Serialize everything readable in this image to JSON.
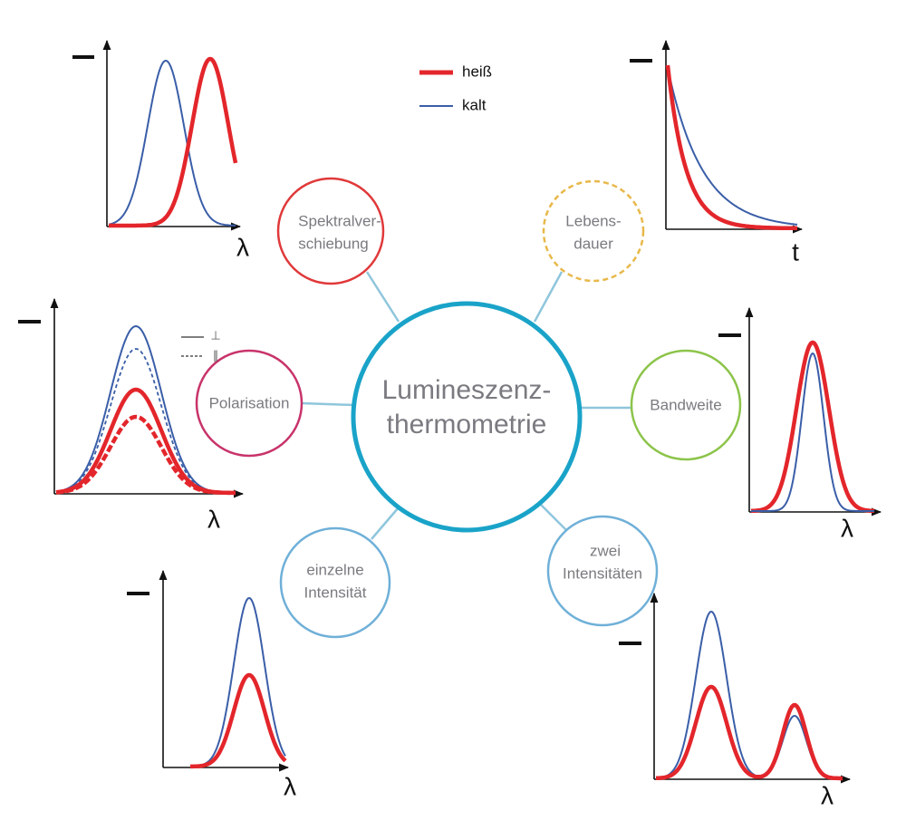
{
  "legend": {
    "hot": "heiß",
    "cold": "kalt"
  },
  "center": {
    "lines": [
      "Lumineszenz-",
      "thermometrie"
    ]
  },
  "nodes": [
    {
      "lines": [
        "Spektralver-",
        "schiebung"
      ]
    },
    {
      "lines": [
        "Lebens-",
        "dauer"
      ]
    },
    {
      "lines": [
        "Polarisation"
      ]
    },
    {
      "lines": [
        "Bandweite"
      ]
    },
    {
      "lines": [
        "einzelne",
        "Intensität"
      ]
    },
    {
      "lines": [
        "zwei",
        "Intensitäten"
      ]
    }
  ],
  "panels": [
    {
      "x_label": "λ"
    },
    {
      "x_label": "t"
    },
    {
      "x_label": "λ",
      "legend": [
        "⊥",
        "∥"
      ]
    },
    {
      "x_label": "λ"
    },
    {
      "x_label": "λ"
    },
    {
      "x_label": "λ"
    }
  ]
}
